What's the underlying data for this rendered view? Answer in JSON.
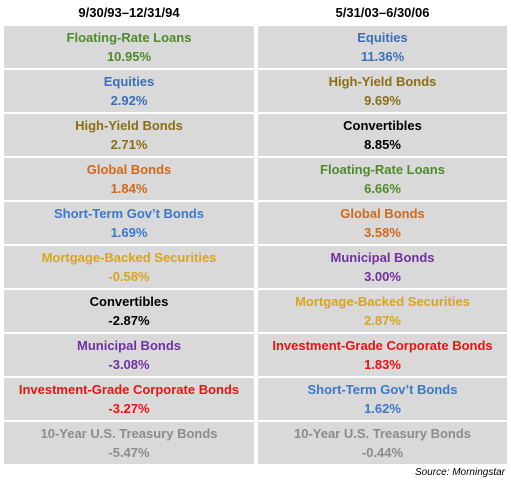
{
  "chart_data": {
    "type": "table",
    "columns": [
      {
        "period": "9/30/93–12/31/94",
        "rows": [
          {
            "name": "Floating-Rate Loans",
            "value": "10.95%",
            "color": "#4f8a2e"
          },
          {
            "name": "Equities",
            "value": "2.92%",
            "color": "#3c6fb6"
          },
          {
            "name": "High-Yield Bonds",
            "value": "2.71%",
            "color": "#8b6f14"
          },
          {
            "name": "Global Bonds",
            "value": "1.84%",
            "color": "#d0691c"
          },
          {
            "name": "Short-Term Gov’t Bonds",
            "value": "1.69%",
            "color": "#3c78c8"
          },
          {
            "name": "Mortgage-Backed Securities",
            "value": "-0.58%",
            "color": "#d9a520"
          },
          {
            "name": "Convertibles",
            "value": "-2.87%",
            "color": "#000000"
          },
          {
            "name": "Municipal Bonds",
            "value": "-3.08%",
            "color": "#7030a0"
          },
          {
            "name": "Investment-Grade Corporate Bonds",
            "value": "-3.27%",
            "color": "#ee1111"
          },
          {
            "name": "10-Year U.S. Treasury Bonds",
            "value": "-5.47%",
            "color": "#8c8c8c"
          }
        ]
      },
      {
        "period": "5/31/03–6/30/06",
        "rows": [
          {
            "name": "Equities",
            "value": "11.36%",
            "color": "#3c6fb6"
          },
          {
            "name": "High-Yield Bonds",
            "value": "9.69%",
            "color": "#8b6f14"
          },
          {
            "name": "Convertibles",
            "value": "8.85%",
            "color": "#000000"
          },
          {
            "name": "Floating-Rate Loans",
            "value": "6.66%",
            "color": "#4f8a2e"
          },
          {
            "name": "Global Bonds",
            "value": "3.58%",
            "color": "#d0691c"
          },
          {
            "name": "Municipal Bonds",
            "value": "3.00%",
            "color": "#7030a0"
          },
          {
            "name": "Mortgage-Backed Securities",
            "value": "2.87%",
            "color": "#d9a520"
          },
          {
            "name": "Investment-Grade Corporate Bonds",
            "value": "1.83%",
            "color": "#ee1111"
          },
          {
            "name": "Short-Term Gov’t Bonds",
            "value": "1.62%",
            "color": "#3c78c8"
          },
          {
            "name": "10-Year U.S. Treasury Bonds",
            "value": "-0.44%",
            "color": "#8c8c8c"
          }
        ]
      }
    ],
    "source": "Source: Morningstar"
  }
}
